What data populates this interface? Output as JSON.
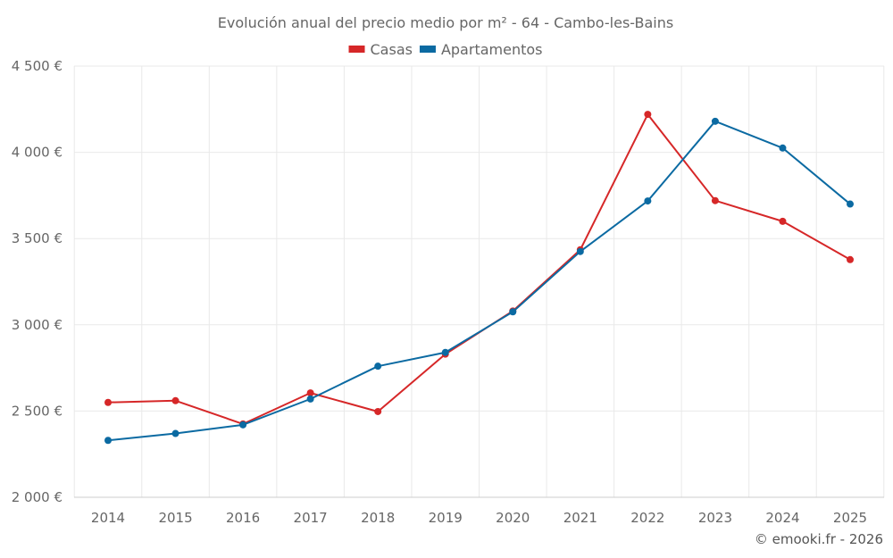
{
  "chart_data": {
    "type": "line",
    "title": "Evolución anual del precio medio por m² - 64 - Cambo-les-Bains",
    "xlabel": "",
    "ylabel": "",
    "x": [
      "2014",
      "2015",
      "2016",
      "2017",
      "2018",
      "2019",
      "2020",
      "2021",
      "2022",
      "2023",
      "2024",
      "2025"
    ],
    "ylim": [
      2000,
      4500
    ],
    "yticks": [
      2000,
      2500,
      3000,
      3500,
      4000,
      4500
    ],
    "ytick_labels": [
      "2 000 €",
      "2 500 €",
      "3 000 €",
      "3 500 €",
      "4 000 €",
      "4 500 €"
    ],
    "grid": true,
    "legend_position": "top-center",
    "series": [
      {
        "name": "Casas",
        "color": "#d62728",
        "values": [
          2550,
          2560,
          2425,
          2605,
          2497,
          2830,
          3080,
          3435,
          4220,
          3720,
          3600,
          3378
        ]
      },
      {
        "name": "Apartamentos",
        "color": "#0b6aa2",
        "values": [
          2330,
          2370,
          2420,
          2570,
          2760,
          2840,
          3075,
          3425,
          3718,
          4180,
          4025,
          3700
        ]
      }
    ],
    "credit": "© emooki.fr - 2026"
  }
}
